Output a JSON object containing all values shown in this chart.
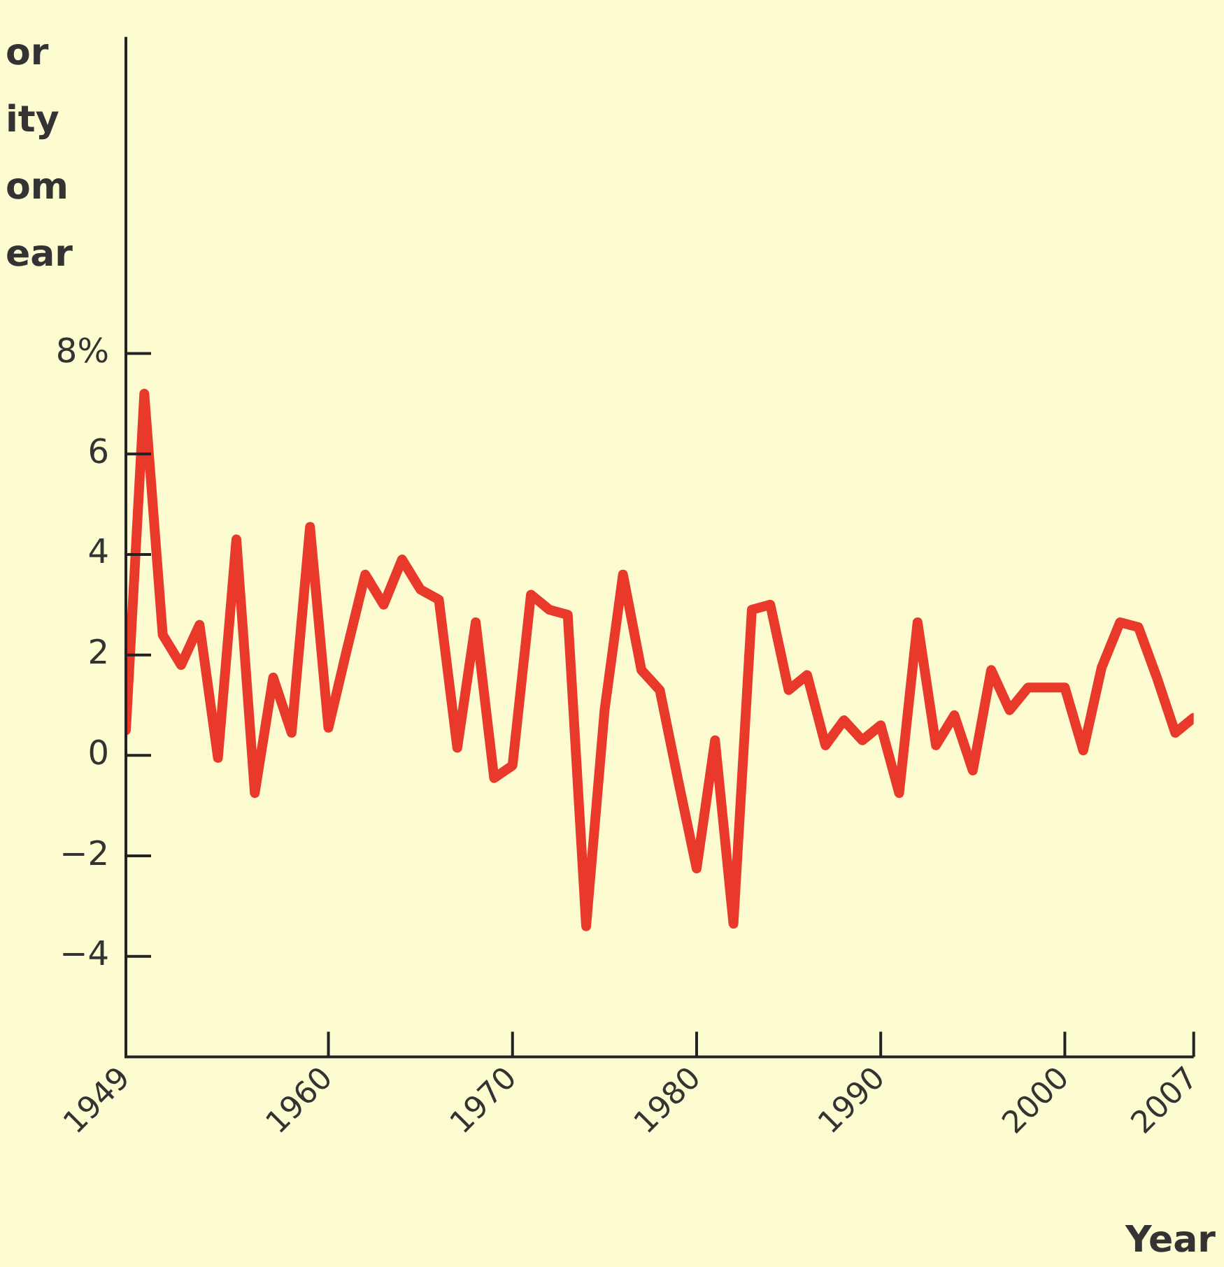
{
  "chart_data": {
    "type": "line",
    "ylabel": "or\nity\nom\near",
    "xlabel": "Year",
    "x": [
      1949,
      1950,
      1951,
      1952,
      1953,
      1954,
      1955,
      1956,
      1957,
      1958,
      1959,
      1960,
      1961,
      1962,
      1963,
      1964,
      1965,
      1966,
      1967,
      1968,
      1969,
      1970,
      1971,
      1972,
      1973,
      1974,
      1975,
      1976,
      1977,
      1978,
      1979,
      1980,
      1981,
      1982,
      1983,
      1984,
      1985,
      1986,
      1987,
      1988,
      1989,
      1990,
      1991,
      1992,
      1993,
      1994,
      1995,
      1996,
      1997,
      1998,
      1999,
      2000,
      2001,
      2002,
      2003,
      2004,
      2005,
      2006,
      2007
    ],
    "series": [
      {
        "color": "#e8392a",
        "values": [
          0.5,
          7.2,
          2.4,
          1.8,
          2.6,
          -0.05,
          4.3,
          -0.75,
          1.55,
          0.45,
          4.55,
          0.55,
          2.1,
          3.6,
          3.0,
          3.9,
          3.3,
          3.1,
          0.15,
          2.65,
          -0.45,
          -0.2,
          3.2,
          2.9,
          2.8,
          -3.4,
          0.9,
          3.6,
          1.7,
          1.3,
          -0.5,
          -2.25,
          0.3,
          -3.35,
          2.9,
          3.0,
          1.3,
          1.6,
          0.2,
          0.7,
          0.3,
          0.6,
          -0.75,
          2.65,
          0.2,
          0.8,
          -0.3,
          1.7,
          0.9,
          1.35,
          1.35,
          1.35,
          0.1,
          1.75,
          2.65,
          2.55,
          1.55,
          0.45,
          0.75
        ]
      }
    ],
    "xlim": [
      1949,
      2007
    ],
    "xticks": [
      1949,
      1960,
      1970,
      1980,
      1990,
      2000,
      2007
    ],
    "ylim": [
      -6,
      14.3
    ],
    "yticks": [
      -4,
      -2,
      0,
      2,
      4,
      6,
      {
        "value": 8,
        "label": "8%"
      }
    ],
    "grid": false,
    "legend": false,
    "marker": "none",
    "line_style": "solid"
  }
}
